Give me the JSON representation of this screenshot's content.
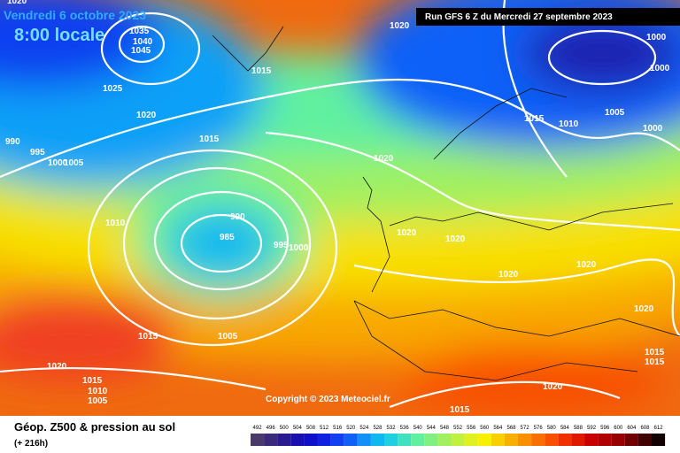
{
  "header": {
    "date": "Vendredi 6 octobre 2023",
    "time": "8:00 locale",
    "run": "Run GFS 6 Z du Mercredi 27 septembre 2023",
    "copyright": "Copyright © 2023 Meteociel.fr"
  },
  "footer": {
    "title": "Géop. Z500 & pression au sol",
    "subtitle": "(+ 216h)"
  },
  "isobar_labels": [
    1020,
    1035,
    1040,
    1045,
    1015,
    1025,
    1020,
    1000,
    1000,
    1005,
    1015,
    1010,
    1000,
    990,
    995,
    1000,
    1005,
    1015,
    1020,
    1010,
    990,
    985,
    995,
    1000,
    1020,
    1020,
    1020,
    1020,
    1020,
    1015,
    1005,
    1020,
    1015,
    1015,
    1015,
    1010,
    1005,
    1020,
    1015,
    1020
  ],
  "legend": {
    "labels": [
      492,
      496,
      500,
      504,
      508,
      512,
      516,
      520,
      524,
      528,
      532,
      536,
      540,
      544,
      548,
      552,
      556,
      560,
      564,
      568,
      572,
      576,
      580,
      584,
      588,
      592,
      596,
      600,
      604,
      608,
      612
    ],
    "colors": [
      "#4a3a6a",
      "#3a2a7a",
      "#2a1a90",
      "#1a10b0",
      "#1010c8",
      "#1020e0",
      "#1040f0",
      "#1060f8",
      "#1090f8",
      "#10b8f0",
      "#20d0e0",
      "#40e0c0",
      "#60f0a0",
      "#80f080",
      "#a0f060",
      "#c0f040",
      "#e0f020",
      "#f8f000",
      "#f8d000",
      "#f8b000",
      "#f89000",
      "#f87000",
      "#f85000",
      "#f03000",
      "#e01800",
      "#c80000",
      "#b00000",
      "#980000",
      "#700000",
      "#400000",
      "#100000"
    ]
  }
}
